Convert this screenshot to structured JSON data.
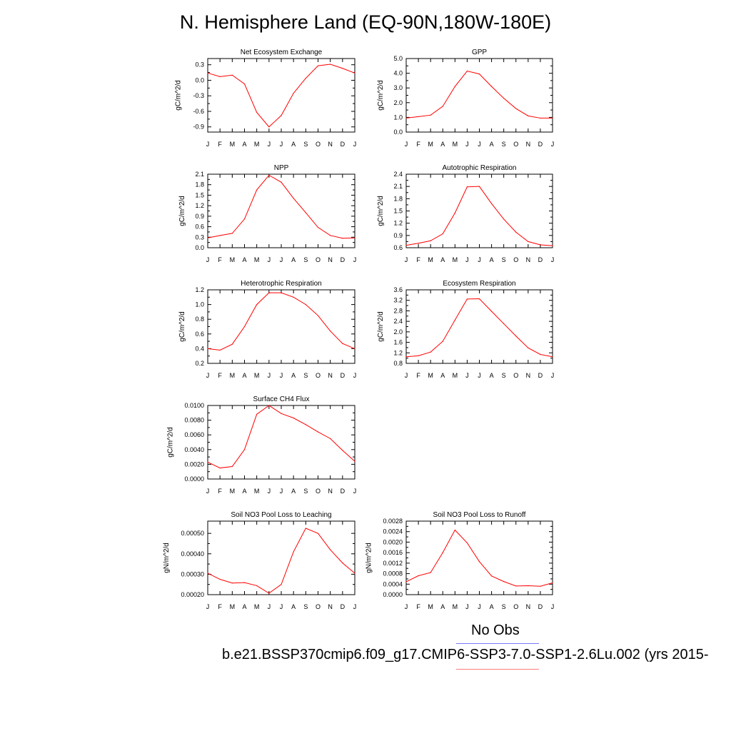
{
  "title": "N. Hemisphere Land (EQ-90N,180W-180E)",
  "legend": {
    "obs_label": "No Obs",
    "case_label": "b.e21.BSSP370cmip6.f09_g17.CMIP6-SSP3-7.0-SSP1-2.6Lu.002 (yrs 2015-",
    "obs_color": "#7b7bff",
    "case_color": "#ff7b7b"
  },
  "line_color": "#ff0000",
  "chart_data": [
    {
      "id": "nee",
      "type": "line",
      "title": "Net Ecosystem Exchange",
      "ylabel": "gC/m^2/d",
      "x": [
        "J",
        "F",
        "M",
        "A",
        "M",
        "J",
        "J",
        "A",
        "S",
        "O",
        "N",
        "D",
        "J"
      ],
      "ylim": [
        -1.0,
        0.42
      ],
      "yticks": [
        -0.9,
        -0.6,
        -0.3,
        0.0,
        0.3
      ],
      "ytick_labels": [
        "-0.9",
        "-0.6",
        "-0.3",
        "0.0",
        "0.3"
      ],
      "values": [
        0.14,
        0.07,
        0.1,
        -0.07,
        -0.62,
        -0.9,
        -0.68,
        -0.25,
        0.04,
        0.28,
        0.31,
        0.23,
        0.14
      ]
    },
    {
      "id": "gpp",
      "type": "line",
      "title": "GPP",
      "ylabel": "gC/m^2/d",
      "x": [
        "J",
        "F",
        "M",
        "A",
        "M",
        "J",
        "J",
        "A",
        "S",
        "O",
        "N",
        "D",
        "J"
      ],
      "ylim": [
        0.0,
        5.0
      ],
      "yticks": [
        0.0,
        1.0,
        2.0,
        3.0,
        4.0,
        5.0
      ],
      "ytick_labels": [
        "0.0",
        "1.0",
        "2.0",
        "3.0",
        "4.0",
        "5.0"
      ],
      "values": [
        0.95,
        1.05,
        1.15,
        1.75,
        3.1,
        4.15,
        3.95,
        3.1,
        2.3,
        1.6,
        1.1,
        0.95,
        0.95
      ]
    },
    {
      "id": "npp",
      "type": "line",
      "title": "NPP",
      "ylabel": "gC/m^2/d",
      "x": [
        "J",
        "F",
        "M",
        "A",
        "M",
        "J",
        "J",
        "A",
        "S",
        "O",
        "N",
        "D",
        "J"
      ],
      "ylim": [
        0.0,
        2.1
      ],
      "yticks": [
        0.0,
        0.3,
        0.6,
        0.9,
        1.2,
        1.5,
        1.8,
        2.1
      ],
      "ytick_labels": [
        "0.0",
        "0.3",
        "0.6",
        "0.9",
        "1.2",
        "1.5",
        "1.8",
        "2.1"
      ],
      "values": [
        0.28,
        0.35,
        0.41,
        0.82,
        1.65,
        2.07,
        1.87,
        1.41,
        1.0,
        0.58,
        0.35,
        0.27,
        0.28
      ]
    },
    {
      "id": "ar",
      "type": "line",
      "title": "Autotrophic Respiration",
      "ylabel": "gC/m^2/d",
      "x": [
        "J",
        "F",
        "M",
        "A",
        "M",
        "J",
        "J",
        "A",
        "S",
        "O",
        "N",
        "D",
        "J"
      ],
      "ylim": [
        0.6,
        2.4
      ],
      "yticks": [
        0.6,
        0.9,
        1.2,
        1.5,
        1.8,
        2.1,
        2.4
      ],
      "ytick_labels": [
        "0.6",
        "0.9",
        "1.2",
        "1.5",
        "1.8",
        "2.1",
        "2.4"
      ],
      "values": [
        0.66,
        0.71,
        0.77,
        0.94,
        1.45,
        2.09,
        2.1,
        1.68,
        1.3,
        0.98,
        0.75,
        0.67,
        0.65
      ]
    },
    {
      "id": "hr",
      "type": "line",
      "title": "Heterotrophic Respiration",
      "ylabel": "gC/m^2/d",
      "x": [
        "J",
        "F",
        "M",
        "A",
        "M",
        "J",
        "J",
        "A",
        "S",
        "O",
        "N",
        "D",
        "J"
      ],
      "ylim": [
        0.2,
        1.2
      ],
      "yticks": [
        0.2,
        0.4,
        0.6,
        0.8,
        1.0,
        1.2
      ],
      "ytick_labels": [
        "0.2",
        "0.4",
        "0.6",
        "0.8",
        "1.0",
        "1.2"
      ],
      "values": [
        0.4,
        0.38,
        0.46,
        0.7,
        1.0,
        1.16,
        1.16,
        1.1,
        1.0,
        0.85,
        0.64,
        0.47,
        0.4
      ]
    },
    {
      "id": "er",
      "type": "line",
      "title": "Ecosystem Respiration",
      "ylabel": "gC/m^2/d",
      "x": [
        "J",
        "F",
        "M",
        "A",
        "M",
        "J",
        "J",
        "A",
        "S",
        "O",
        "N",
        "D",
        "J"
      ],
      "ylim": [
        0.8,
        3.6
      ],
      "yticks": [
        0.8,
        1.2,
        1.6,
        2.0,
        2.4,
        2.8,
        3.2,
        3.6
      ],
      "ytick_labels": [
        "0.8",
        "1.2",
        "1.6",
        "2.0",
        "2.4",
        "2.8",
        "3.2",
        "3.6"
      ],
      "values": [
        1.05,
        1.09,
        1.23,
        1.64,
        2.45,
        3.25,
        3.26,
        2.78,
        2.31,
        1.84,
        1.39,
        1.14,
        1.05
      ]
    },
    {
      "id": "ch4",
      "type": "line",
      "title": "Surface CH4 Flux",
      "ylabel": "gC/m^2/d",
      "x": [
        "J",
        "F",
        "M",
        "A",
        "M",
        "J",
        "J",
        "A",
        "S",
        "O",
        "N",
        "D",
        "J"
      ],
      "ylim": [
        0.0,
        0.01
      ],
      "yticks": [
        0.0,
        0.002,
        0.004,
        0.006,
        0.008,
        0.01
      ],
      "ytick_labels": [
        "0.0000",
        "0.0020",
        "0.0040",
        "0.0060",
        "0.0080",
        "0.0100"
      ],
      "values": [
        0.0023,
        0.0015,
        0.0017,
        0.004,
        0.0088,
        0.01,
        0.0089,
        0.0083,
        0.0074,
        0.0064,
        0.0055,
        0.0039,
        0.0024
      ]
    },
    {
      "id": "leach",
      "type": "line",
      "title": "Soil NO3 Pool Loss to Leaching",
      "ylabel": "gN/m^2/d",
      "x": [
        "J",
        "F",
        "M",
        "A",
        "M",
        "J",
        "J",
        "A",
        "S",
        "O",
        "N",
        "D",
        "J"
      ],
      "ylim": [
        0.0002,
        0.00056
      ],
      "yticks": [
        0.0002,
        0.0003,
        0.0004,
        0.0005
      ],
      "ytick_labels": [
        "0.00020",
        "0.00030",
        "0.00040",
        "0.00050"
      ],
      "values": [
        0.000305,
        0.000275,
        0.000257,
        0.000259,
        0.000244,
        0.000207,
        0.00025,
        0.00041,
        0.000525,
        0.0005,
        0.00042,
        0.000355,
        0.000305
      ]
    },
    {
      "id": "runoff",
      "type": "line",
      "title": "Soil NO3 Pool Loss to Runoff",
      "ylabel": "gN/m^2/d",
      "x": [
        "J",
        "F",
        "M",
        "A",
        "M",
        "J",
        "J",
        "A",
        "S",
        "O",
        "N",
        "D",
        "J"
      ],
      "ylim": [
        0.0,
        0.0028
      ],
      "yticks": [
        0.0,
        0.0004,
        0.0008,
        0.0012,
        0.0016,
        0.002,
        0.0024,
        0.0028
      ],
      "ytick_labels": [
        "0.0000",
        "0.0004",
        "0.0008",
        "0.0012",
        "0.0016",
        "0.0020",
        "0.0024",
        "0.0028"
      ],
      "values": [
        0.00049,
        0.00072,
        0.00084,
        0.0016,
        0.00246,
        0.00197,
        0.00126,
        0.00071,
        0.0005,
        0.00033,
        0.00034,
        0.00032,
        0.00045
      ]
    }
  ]
}
